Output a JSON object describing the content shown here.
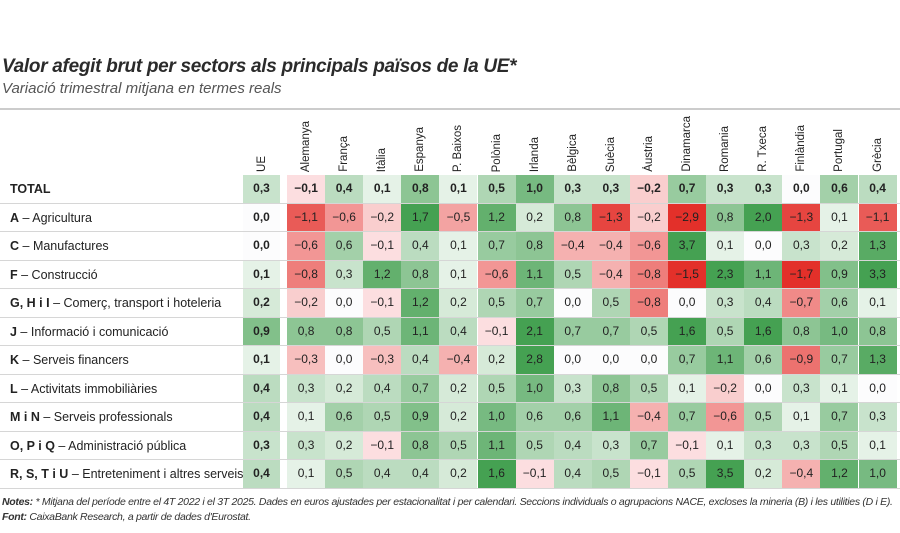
{
  "title": "Valor afegit brut per sectors als principals països de la UE*",
  "subtitle": "Variació trimestral mitjana en termes reals",
  "chart_data": {
    "type": "heatmap",
    "columns": [
      "UE",
      "Alemanya",
      "França",
      "Itàlia",
      "Espanya",
      "P. Baixos",
      "Polònia",
      "Irlanda",
      "Bèlgica",
      "Suècia",
      "Àustria",
      "Dinamarca",
      "Romania",
      "R. Txeca",
      "Finlàndia",
      "Portugal",
      "Grècia"
    ],
    "rows": [
      {
        "code": "TOTAL",
        "name": "",
        "values": [
          0.3,
          -0.1,
          0.4,
          0.1,
          0.8,
          0.1,
          0.5,
          1.0,
          0.3,
          0.3,
          -0.2,
          0.7,
          0.3,
          0.3,
          0.0,
          0.6,
          0.4
        ]
      },
      {
        "code": "A",
        "name": "Agricultura",
        "values": [
          0.0,
          -1.1,
          -0.6,
          -0.2,
          1.7,
          -0.5,
          1.2,
          0.2,
          0.8,
          -1.3,
          -0.2,
          -2.9,
          0.8,
          2.0,
          -1.3,
          0.1,
          -1.1
        ]
      },
      {
        "code": "C",
        "name": "Manufactures",
        "values": [
          0.0,
          -0.6,
          0.6,
          -0.1,
          0.4,
          0.1,
          0.7,
          0.8,
          -0.4,
          -0.4,
          -0.6,
          3.7,
          0.1,
          0.0,
          0.3,
          0.2,
          1.3
        ]
      },
      {
        "code": "F",
        "name": "Construcció",
        "values": [
          0.1,
          -0.8,
          0.3,
          1.2,
          0.8,
          0.1,
          -0.6,
          1.1,
          0.5,
          -0.4,
          -0.8,
          -1.5,
          2.3,
          1.1,
          -1.7,
          0.9,
          3.3
        ]
      },
      {
        "code": "G, H i I",
        "name": "Comerç, transport i hoteleria",
        "values": [
          0.2,
          -0.2,
          0.0,
          -0.1,
          1.2,
          0.2,
          0.5,
          0.7,
          0.0,
          0.5,
          -0.8,
          0.0,
          0.3,
          0.4,
          -0.7,
          0.6,
          0.1
        ]
      },
      {
        "code": "J",
        "name": "Informació i comunicació",
        "values": [
          0.9,
          0.8,
          0.8,
          0.5,
          1.1,
          0.4,
          -0.1,
          2.1,
          0.7,
          0.7,
          0.5,
          1.6,
          0.5,
          1.6,
          0.8,
          1.0,
          0.8
        ]
      },
      {
        "code": "K",
        "name": "Serveis financers",
        "values": [
          0.1,
          -0.3,
          0.0,
          -0.3,
          0.4,
          -0.4,
          0.2,
          2.8,
          0.0,
          0.0,
          0.0,
          0.7,
          1.1,
          0.6,
          -0.9,
          0.7,
          1.3
        ]
      },
      {
        "code": "L",
        "name": "Activitats immobiliàries",
        "values": [
          0.4,
          0.3,
          0.2,
          0.4,
          0.7,
          0.2,
          0.5,
          1.0,
          0.3,
          0.8,
          0.5,
          0.1,
          -0.2,
          0.0,
          0.3,
          0.1,
          0.0
        ]
      },
      {
        "code": "M i N",
        "name": "Serveis professionals",
        "values": [
          0.4,
          0.1,
          0.6,
          0.5,
          0.9,
          0.2,
          1.0,
          0.6,
          0.6,
          1.1,
          -0.4,
          0.7,
          -0.6,
          0.5,
          0.1,
          0.7,
          0.3
        ]
      },
      {
        "code": "O, P i Q",
        "name": "Administració pública",
        "values": [
          0.3,
          0.3,
          0.2,
          -0.1,
          0.8,
          0.5,
          1.1,
          0.5,
          0.4,
          0.3,
          0.7,
          -0.1,
          0.1,
          0.3,
          0.3,
          0.5,
          0.1
        ]
      },
      {
        "code": "R, S, T i U",
        "name": "Entreteniment i altres serveis",
        "values": [
          0.4,
          0.1,
          0.5,
          0.4,
          0.4,
          0.2,
          1.6,
          -0.1,
          0.4,
          0.5,
          -0.1,
          0.5,
          3.5,
          0.2,
          -0.4,
          1.2,
          1.0
        ]
      }
    ],
    "colors": {
      "positive": "#45a152",
      "negative": "#e3302a",
      "zero": "#ffffff"
    }
  },
  "notes": {
    "notes_label": "Notes:",
    "notes_text": " * Mitjana del període entre el 4T 2022 i el 3T 2025. Dades en euros ajustades per estacionalitat i per calendari. Seccions individuals o agrupacions NACE, excloses la mineria (B) i les utilities (D i E).",
    "source_label": "Font:",
    "source_text": " CaixaBank Research, a partir de dades d'Eurostat."
  }
}
